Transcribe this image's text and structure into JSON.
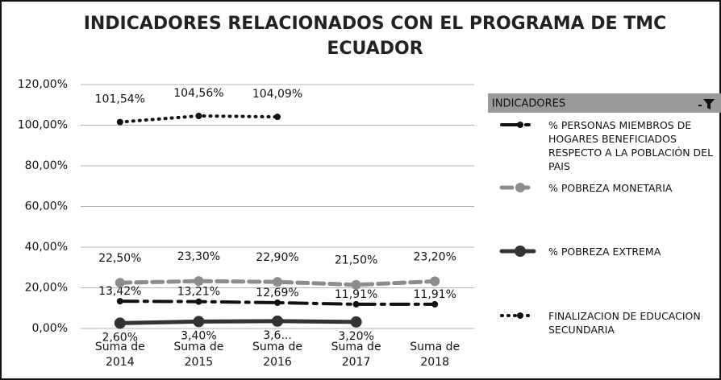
{
  "chart_data": {
    "type": "line",
    "title": "INDICADORES RELACIONADOS CON EL PROGRAMA DE TMC ECUADOR",
    "categories": [
      "Suma de 2014",
      "Suma de 2015",
      "Suma de 2016",
      "Suma de 2017",
      "Suma de 2018"
    ],
    "ylim": [
      0,
      120
    ],
    "yticks": [
      {
        "value": 0,
        "label": "0,00%"
      },
      {
        "value": 20,
        "label": "20,00%"
      },
      {
        "value": 40,
        "label": "40,00%"
      },
      {
        "value": 60,
        "label": "60,00%"
      },
      {
        "value": 80,
        "label": "80,00%"
      },
      {
        "value": 100,
        "label": "100,00%"
      },
      {
        "value": 120,
        "label": "120,00%"
      }
    ],
    "grid": true,
    "legend_title": "INDICADORES",
    "legend": "right",
    "series": [
      {
        "name": "% PERSONAS MIEMBROS DE HOGARES BENEFICIADOS RESPECTO A LA POBLACIÓN DEL PAIS",
        "color": "#111111",
        "values": [
          13.42,
          13.21,
          12.69,
          11.91,
          11.91
        ],
        "value_labels": [
          "13,42%",
          "13,21%",
          "12,69%",
          "11,91%",
          "11,91%"
        ]
      },
      {
        "name": "% POBREZA MONETARIA",
        "color": "#8c8c8c",
        "values": [
          22.5,
          23.3,
          22.9,
          21.5,
          23.2
        ],
        "value_labels": [
          "22,50%",
          "23,30%",
          "22,90%",
          "21,50%",
          "23,20%"
        ]
      },
      {
        "name": "% POBREZA EXTREMA",
        "color": "#333333",
        "values": [
          2.6,
          3.4,
          3.6,
          3.2,
          null
        ],
        "value_labels": [
          "2,60%",
          "3,40%",
          "3,6...",
          "3,20%",
          null
        ]
      },
      {
        "name": "FINALIZACION DE EDUCACION SECUNDARIA",
        "color": "#111111",
        "values": [
          101.54,
          104.56,
          104.09,
          null,
          null
        ],
        "value_labels": [
          "101,54%",
          "104,56%",
          "104,09%",
          null,
          null
        ]
      }
    ]
  }
}
